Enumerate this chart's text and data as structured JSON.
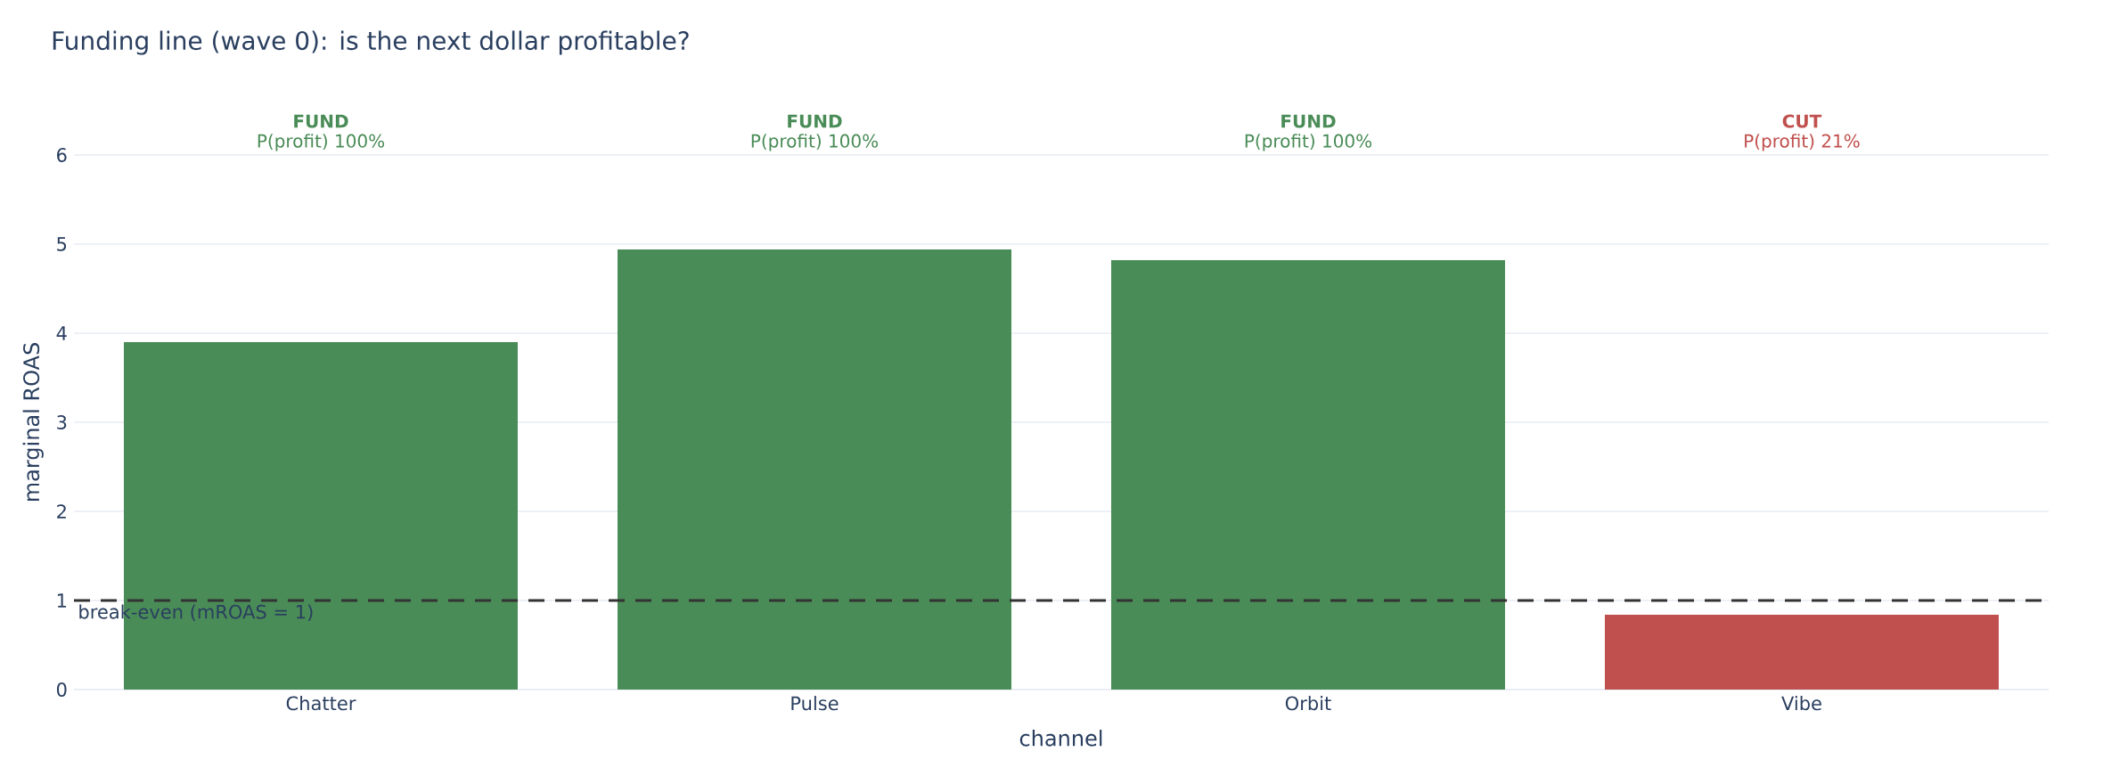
{
  "chart_data": {
    "type": "bar",
    "title": "Funding line (wave 0): is the next dollar profitable?",
    "xlabel": "channel",
    "ylabel": "marginal ROAS",
    "categories": [
      "Chatter",
      "Pulse",
      "Orbit",
      "Vibe"
    ],
    "values": [
      3.9,
      4.94,
      4.82,
      0.84
    ],
    "colors": [
      "#4a8c57",
      "#4a8c57",
      "#4a8c57",
      "#c0504d"
    ],
    "ylim": [
      0,
      6
    ],
    "yticks": [
      0,
      1,
      2,
      3,
      4,
      5,
      6
    ],
    "grid": "y",
    "ref_lines": [
      {
        "axis": "y",
        "value": 1,
        "label": "break-even (mROAS = 1)",
        "color": "#333333",
        "line_style": "dashed"
      }
    ],
    "annotations": [
      "**FUND**",
      "P(profit) 100%",
      "**FUND**",
      "P(profit) 100%",
      "**FUND**",
      "P(profit) 100%",
      "**CUT**",
      "P(profit) 21%"
    ]
  }
}
